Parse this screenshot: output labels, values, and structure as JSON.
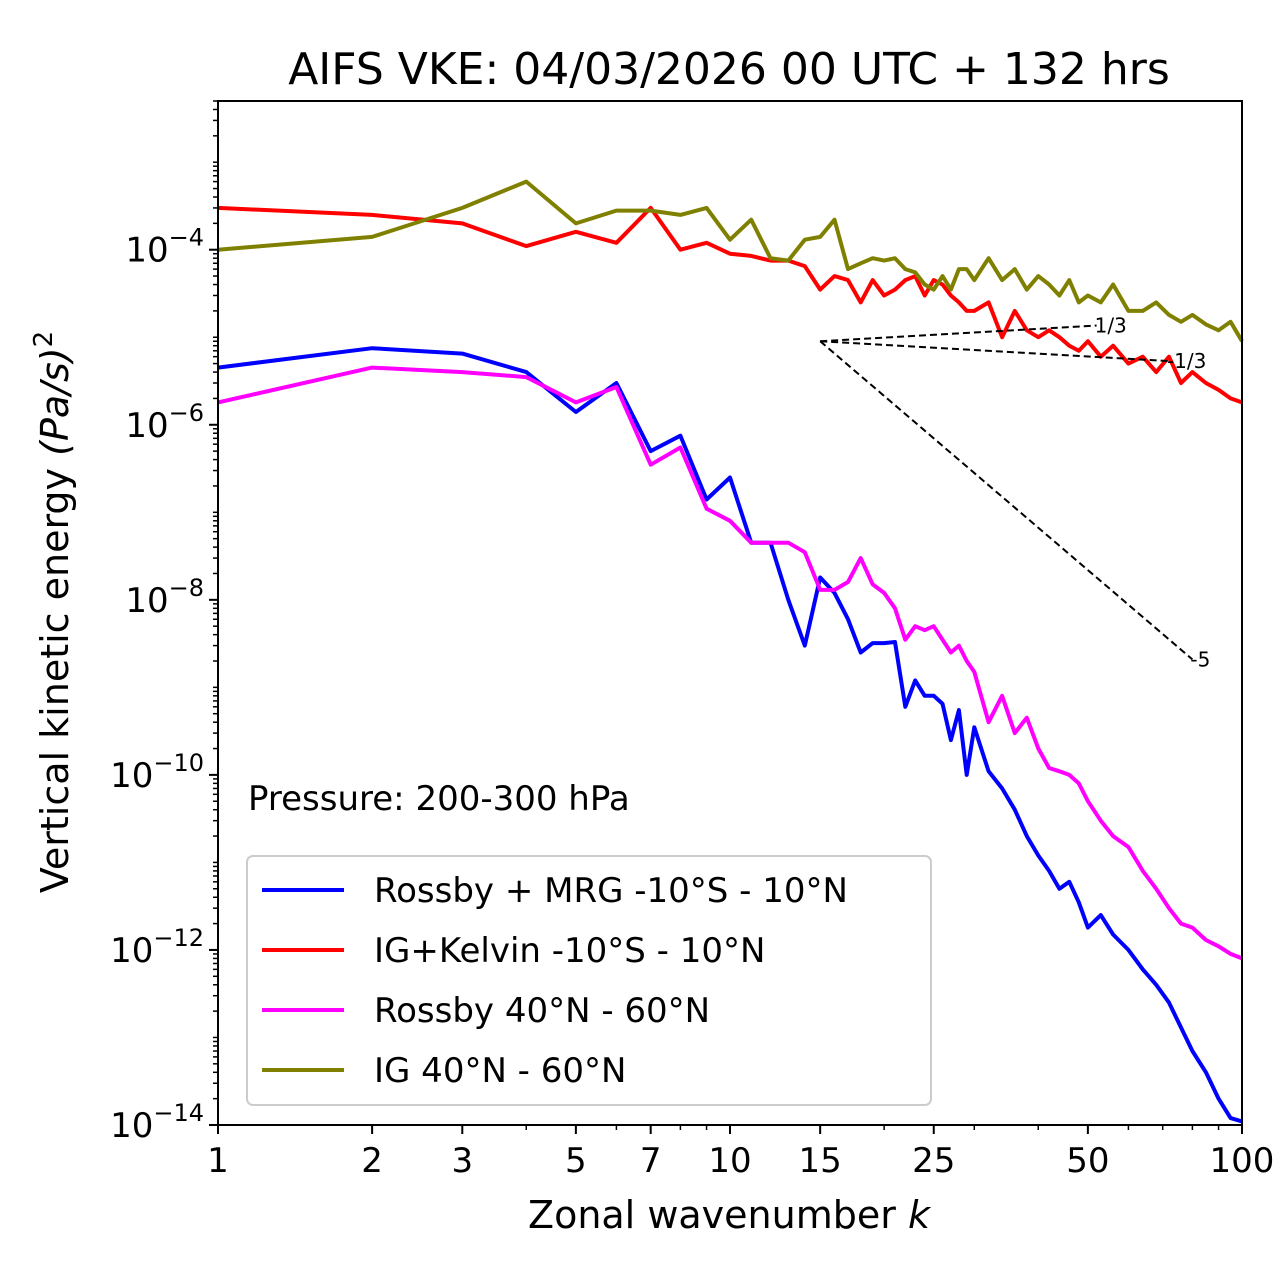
{
  "chart_data": {
    "type": "line",
    "title": "AIFS VKE: 04/03/2026 00 UTC + 132 hrs",
    "xlabel": "Zonal wavenumber",
    "xlabel_var": "k",
    "ylabel": "Vertical kinetic energy",
    "ylabel_units": "(Pa/s)",
    "ylabel_exp": "2",
    "xscale": "log",
    "yscale": "log",
    "xlim": [
      1,
      100
    ],
    "ylim": [
      1e-14,
      0.005
    ],
    "xticks": [
      1,
      2,
      3,
      5,
      7,
      10,
      15,
      25,
      50,
      100
    ],
    "xtick_labels": [
      "1",
      "2",
      "3",
      "5",
      "7",
      "10",
      "15",
      "25",
      "50",
      "100"
    ],
    "yticks": [
      {
        "value": 1e-14,
        "base": "10",
        "exp": "−14"
      },
      {
        "value": 1e-12,
        "base": "10",
        "exp": "−12"
      },
      {
        "value": 1e-10,
        "base": "10",
        "exp": "−10"
      },
      {
        "value": 1e-08,
        "base": "10",
        "exp": "−8"
      },
      {
        "value": 1e-06,
        "base": "10",
        "exp": "−6"
      },
      {
        "value": 0.0001,
        "base": "10",
        "exp": "−4"
      }
    ],
    "annotation": "Pressure: 200-300 hPa",
    "legend_position": "lower-left",
    "series": [
      {
        "name": "Rossby + MRG -10°S - 10°N",
        "color": "#0000ff",
        "x": [
          1,
          2,
          3,
          4,
          5,
          6,
          7,
          8,
          9,
          10,
          11,
          12,
          13,
          14,
          15,
          16,
          17,
          18,
          19,
          20,
          21,
          22,
          23,
          24,
          25,
          26,
          27,
          28,
          29,
          30,
          32,
          34,
          36,
          38,
          40,
          42,
          44,
          46,
          48,
          50,
          53,
          56,
          60,
          64,
          68,
          72,
          76,
          80,
          85,
          90,
          95,
          100
        ],
        "values": [
          4.5e-06,
          7.5e-06,
          6.5e-06,
          4e-06,
          1.4e-06,
          3e-06,
          5e-07,
          7.5e-07,
          1.4e-07,
          2.5e-07,
          4.5e-08,
          4.5e-08,
          1e-08,
          3e-09,
          1.8e-08,
          1.2e-08,
          6e-09,
          2.5e-09,
          3.2e-09,
          3.2e-09,
          3.3e-09,
          6e-10,
          1.2e-09,
          8e-10,
          8e-10,
          6.5e-10,
          2.5e-10,
          5.5e-10,
          1e-10,
          3.5e-10,
          1.1e-10,
          7e-11,
          4e-11,
          2e-11,
          1.2e-11,
          8e-12,
          5e-12,
          6e-12,
          3.5e-12,
          1.8e-12,
          2.5e-12,
          1.5e-12,
          1e-12,
          6e-13,
          4e-13,
          2.5e-13,
          1.3e-13,
          7e-14,
          4e-14,
          2e-14,
          1.2e-14,
          1.1e-14
        ]
      },
      {
        "name": "IG+Kelvin -10°S - 10°N",
        "color": "#ff0000",
        "x": [
          1,
          2,
          3,
          4,
          5,
          6,
          7,
          8,
          9,
          10,
          11,
          12,
          13,
          14,
          15,
          16,
          17,
          18,
          19,
          20,
          21,
          22,
          23,
          24,
          25,
          26,
          27,
          28,
          29,
          30,
          32,
          34,
          36,
          38,
          40,
          42,
          44,
          46,
          48,
          50,
          53,
          56,
          60,
          64,
          68,
          72,
          76,
          80,
          85,
          90,
          95,
          100
        ],
        "values": [
          0.0003,
          0.00025,
          0.0002,
          0.00011,
          0.00016,
          0.00012,
          0.0003,
          0.0001,
          0.00012,
          9e-05,
          8.5e-05,
          7.5e-05,
          7.5e-05,
          6.5e-05,
          3.5e-05,
          5e-05,
          4.5e-05,
          2.5e-05,
          4.5e-05,
          3e-05,
          3.5e-05,
          4.5e-05,
          5e-05,
          3e-05,
          4.5e-05,
          4e-05,
          3e-05,
          2.5e-05,
          2e-05,
          2e-05,
          2.5e-05,
          1e-05,
          2e-05,
          1.2e-05,
          1e-05,
          1.2e-05,
          1e-05,
          8e-06,
          7e-06,
          9e-06,
          6e-06,
          8e-06,
          5e-06,
          6e-06,
          4e-06,
          6e-06,
          3e-06,
          4e-06,
          3e-06,
          2.5e-06,
          2e-06,
          1.8e-06
        ]
      },
      {
        "name": "Rossby 40°N - 60°N",
        "color": "#ff00ff",
        "x": [
          1,
          2,
          3,
          4,
          5,
          6,
          7,
          8,
          9,
          10,
          11,
          12,
          13,
          14,
          15,
          16,
          17,
          18,
          19,
          20,
          21,
          22,
          23,
          24,
          25,
          26,
          27,
          28,
          29,
          30,
          32,
          34,
          36,
          38,
          40,
          42,
          44,
          46,
          48,
          50,
          53,
          56,
          60,
          64,
          68,
          72,
          76,
          80,
          85,
          90,
          95,
          100
        ],
        "values": [
          1.8e-06,
          4.5e-06,
          4e-06,
          3.5e-06,
          1.8e-06,
          2.7e-06,
          3.5e-07,
          5.5e-07,
          1.1e-07,
          8e-08,
          4.5e-08,
          4.5e-08,
          4.5e-08,
          3.5e-08,
          1.3e-08,
          1.3e-08,
          1.6e-08,
          3e-08,
          1.5e-08,
          1.2e-08,
          8e-09,
          3.5e-09,
          5e-09,
          4.5e-09,
          5e-09,
          3.5e-09,
          2.5e-09,
          3e-09,
          2e-09,
          1.5e-09,
          4e-10,
          8e-10,
          3e-10,
          4.5e-10,
          2e-10,
          1.2e-10,
          1.1e-10,
          1e-10,
          8e-11,
          5e-11,
          3e-11,
          2e-11,
          1.5e-11,
          8e-12,
          5e-12,
          3e-12,
          2e-12,
          1.8e-12,
          1.3e-12,
          1.1e-12,
          9e-13,
          8e-13
        ]
      },
      {
        "name": "IG 40°N - 60°N",
        "color": "#808000",
        "x": [
          1,
          2,
          3,
          4,
          5,
          6,
          7,
          8,
          9,
          10,
          11,
          12,
          13,
          14,
          15,
          16,
          17,
          18,
          19,
          20,
          21,
          22,
          23,
          24,
          25,
          26,
          27,
          28,
          29,
          30,
          32,
          34,
          36,
          38,
          40,
          42,
          44,
          46,
          48,
          50,
          53,
          56,
          60,
          64,
          68,
          72,
          76,
          80,
          85,
          90,
          95,
          100
        ],
        "values": [
          0.0001,
          0.00014,
          0.0003,
          0.0006,
          0.0002,
          0.00028,
          0.00028,
          0.00025,
          0.0003,
          0.00013,
          0.00022,
          8e-05,
          7.5e-05,
          0.00013,
          0.00014,
          0.00022,
          6e-05,
          7e-05,
          8e-05,
          7.5e-05,
          8e-05,
          6e-05,
          5.5e-05,
          4e-05,
          3.5e-05,
          5e-05,
          3.5e-05,
          6e-05,
          6e-05,
          4.5e-05,
          8e-05,
          4.5e-05,
          6e-05,
          3.5e-05,
          5e-05,
          4e-05,
          3e-05,
          4.5e-05,
          2.5e-05,
          3e-05,
          2.5e-05,
          4e-05,
          2e-05,
          2e-05,
          2.5e-05,
          1.8e-05,
          1.5e-05,
          1.8e-05,
          1.4e-05,
          1.2e-05,
          1.5e-05,
          9e-06
        ]
      }
    ],
    "reference_slopes": [
      {
        "label": "1/3",
        "k_start": 15,
        "k_end": 52,
        "e_start": 9e-06
      },
      {
        "label": "-1/3",
        "k_start": 15,
        "k_end": 72,
        "e_start": 9e-06
      },
      {
        "label": "-5",
        "k_start": 15,
        "k_end": 80,
        "e_start": 9e-06
      }
    ]
  }
}
